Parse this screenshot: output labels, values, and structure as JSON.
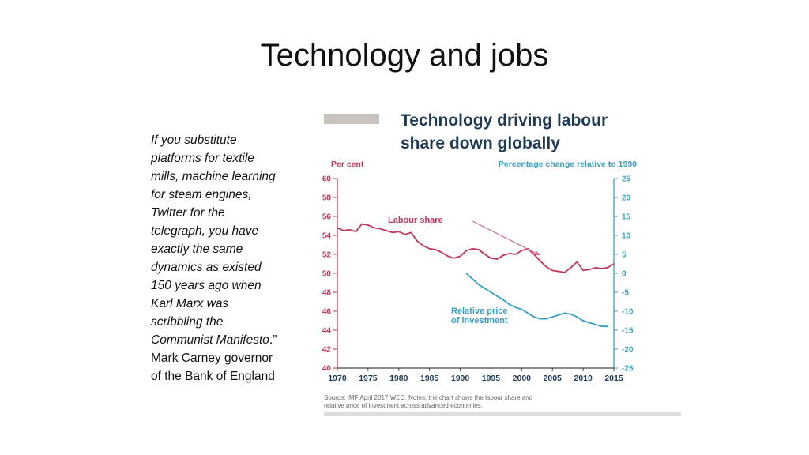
{
  "slide": {
    "title": "Technology and jobs"
  },
  "quote": {
    "lines": [
      "If you substitute",
      "platforms for textile",
      "mills, machine learning",
      "for steam engines,",
      "Twitter for the",
      "telegraph, you have",
      "exactly the same",
      "dynamics as existed",
      "150 years ago  when",
      "Karl Marx was",
      "scribbling the"
    ],
    "last_italic_part": "Communist Manifesto",
    "last_plain_part": ".”",
    "attribution_lines": [
      "Mark Carney governor",
      "of the Bank of England"
    ]
  },
  "chart_data": {
    "type": "line",
    "title_lines": [
      "Technology driving labour",
      "share down globally"
    ],
    "left_axis_label": "Per cent",
    "right_axis_label": "Percentage change relative to 1990",
    "left_ylim": [
      40,
      60
    ],
    "left_ticks": [
      "40",
      "42",
      "44",
      "46",
      "48",
      "50",
      "52",
      "54",
      "56",
      "58",
      "60"
    ],
    "right_ylim": [
      -25,
      25
    ],
    "right_ticks": [
      "-25",
      "-20",
      "-15",
      "-10",
      "-5",
      "0",
      "5",
      "10",
      "15",
      "20",
      "25"
    ],
    "xlim": [
      1970,
      2015
    ],
    "x_ticks": [
      "1970",
      "1975",
      "1980",
      "1985",
      "1990",
      "1995",
      "2000",
      "2005",
      "2010",
      "2015"
    ],
    "grid": false,
    "series": [
      {
        "name": "Labour share",
        "axis": "left",
        "color": "#c0395a",
        "x": [
          1970,
          1971,
          1972,
          1973,
          1974,
          1975,
          1976,
          1977,
          1978,
          1979,
          1980,
          1981,
          1982,
          1983,
          1984,
          1985,
          1986,
          1987,
          1988,
          1989,
          1990,
          1991,
          1992,
          1993,
          1994,
          1995,
          1996,
          1997,
          1998,
          1999,
          2000,
          2001,
          2002,
          2003,
          2004,
          2005,
          2006,
          2007,
          2008,
          2009,
          2010,
          2011,
          2012,
          2013,
          2014,
          2015
        ],
        "values": [
          54.8,
          54.5,
          54.6,
          54.4,
          55.2,
          55.1,
          54.8,
          54.7,
          54.5,
          54.3,
          54.4,
          54.1,
          54.3,
          53.4,
          52.9,
          52.6,
          52.5,
          52.2,
          51.8,
          51.6,
          51.8,
          52.4,
          52.6,
          52.5,
          52.0,
          51.6,
          51.5,
          51.9,
          52.1,
          52.0,
          52.4,
          52.6,
          52.0,
          51.3,
          50.7,
          50.3,
          50.2,
          50.1,
          50.6,
          51.2,
          50.3,
          50.4,
          50.6,
          50.5,
          50.6,
          51.0
        ]
      },
      {
        "name": "Relative price of investment",
        "name_lines": [
          "Relative price",
          "of investment"
        ],
        "axis": "right",
        "color": "#3aa0c0",
        "x": [
          1991,
          1992,
          1993,
          1994,
          1995,
          1996,
          1997,
          1998,
          1999,
          2000,
          2001,
          2002,
          2003,
          2004,
          2005,
          2006,
          2007,
          2008,
          2009,
          2010,
          2011,
          2012,
          2013,
          2014
        ],
        "values": [
          0,
          -1.5,
          -3,
          -4,
          -5,
          -6,
          -7,
          -8.2,
          -9,
          -9.5,
          -10.5,
          -11.5,
          -12,
          -12,
          -11.5,
          -11,
          -10.5,
          -10.8,
          -11.5,
          -12.5,
          -13,
          -13.5,
          -14,
          -14
        ]
      }
    ],
    "annotation_arrow": {
      "from_year": 1992,
      "from_value": 55.5,
      "to_year": 2003,
      "to_value": 51.9
    },
    "footer_lines": [
      "Source:  IMF April 2017 WEO.    Notes:  the chart shows the labour share and",
      "relative price of investment across advanced economies."
    ]
  }
}
